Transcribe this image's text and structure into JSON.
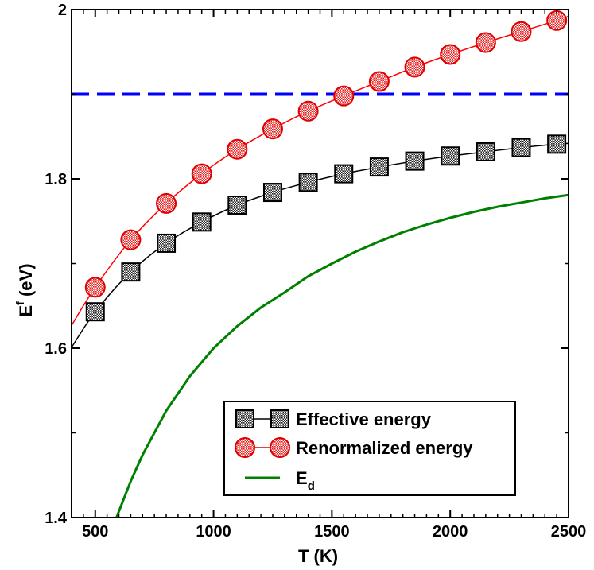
{
  "chart_data": {
    "type": "line",
    "title": "",
    "xlabel": "T (K)",
    "ylabel": {
      "base": "E",
      "sup": "f",
      "unit": " (eV)"
    },
    "xlim": [
      400,
      2500
    ],
    "ylim": [
      1.4,
      2.0
    ],
    "x_ticks": [
      500,
      1000,
      1500,
      2000,
      2500
    ],
    "x_tick_labels": [
      "500",
      "1000",
      "1500",
      "2000",
      "2500"
    ],
    "y_ticks": [
      1.4,
      1.6,
      1.8,
      2.0
    ],
    "y_tick_labels": [
      "1.4",
      "1.6",
      "1.8",
      "2"
    ],
    "grid": false,
    "legend_position": "bottom-right",
    "series": [
      {
        "name": "Effective energy",
        "color": "#000000",
        "marker": "square",
        "marker_fill": "#8a8a8a",
        "x": [
          500,
          650,
          800,
          950,
          1100,
          1250,
          1400,
          1550,
          1700,
          1850,
          2000,
          2150,
          2300,
          2450
        ],
        "values": [
          1.643,
          1.69,
          1.724,
          1.749,
          1.769,
          1.784,
          1.796,
          1.806,
          1.814,
          1.821,
          1.827,
          1.832,
          1.837,
          1.841
        ],
        "line_x": [
          400,
          500,
          650,
          800,
          950,
          1100,
          1250,
          1400,
          1550,
          1700,
          1850,
          2000,
          2150,
          2300,
          2450,
          2500
        ],
        "line_values": [
          1.601,
          1.643,
          1.69,
          1.724,
          1.749,
          1.769,
          1.784,
          1.796,
          1.806,
          1.814,
          1.821,
          1.827,
          1.832,
          1.837,
          1.841,
          1.842
        ]
      },
      {
        "name": "Renormalized energy",
        "color": "#ff0000",
        "marker": "circle",
        "marker_fill": "#f08080",
        "x": [
          500,
          650,
          800,
          950,
          1100,
          1250,
          1400,
          1550,
          1700,
          1850,
          2000,
          2150,
          2300,
          2450
        ],
        "values": [
          1.672,
          1.728,
          1.771,
          1.806,
          1.835,
          1.859,
          1.88,
          1.898,
          1.915,
          1.932,
          1.947,
          1.961,
          1.974,
          1.987
        ],
        "line_x": [
          400,
          500,
          650,
          800,
          950,
          1100,
          1250,
          1400,
          1550,
          1700,
          1850,
          2000,
          2150,
          2300,
          2450,
          2500
        ],
        "line_values": [
          1.627,
          1.672,
          1.728,
          1.771,
          1.806,
          1.835,
          1.859,
          1.88,
          1.898,
          1.915,
          1.932,
          1.947,
          1.961,
          1.974,
          1.987,
          1.992
        ]
      },
      {
        "name": "E",
        "name_sub": "d",
        "color": "#008000",
        "marker": "none",
        "x": [
          590,
          650,
          700,
          800,
          900,
          1000,
          1100,
          1200,
          1300,
          1400,
          1500,
          1600,
          1700,
          1800,
          1900,
          2000,
          2100,
          2200,
          2300,
          2400,
          2500
        ],
        "values": [
          1.4,
          1.443,
          1.474,
          1.526,
          1.567,
          1.6,
          1.626,
          1.648,
          1.666,
          1.685,
          1.7,
          1.714,
          1.726,
          1.737,
          1.746,
          1.754,
          1.761,
          1.767,
          1.772,
          1.777,
          1.781
        ]
      }
    ],
    "reference_lines": [
      {
        "orientation": "horizontal",
        "value": 1.9,
        "color": "#0000ff",
        "style": "dashed"
      }
    ]
  }
}
